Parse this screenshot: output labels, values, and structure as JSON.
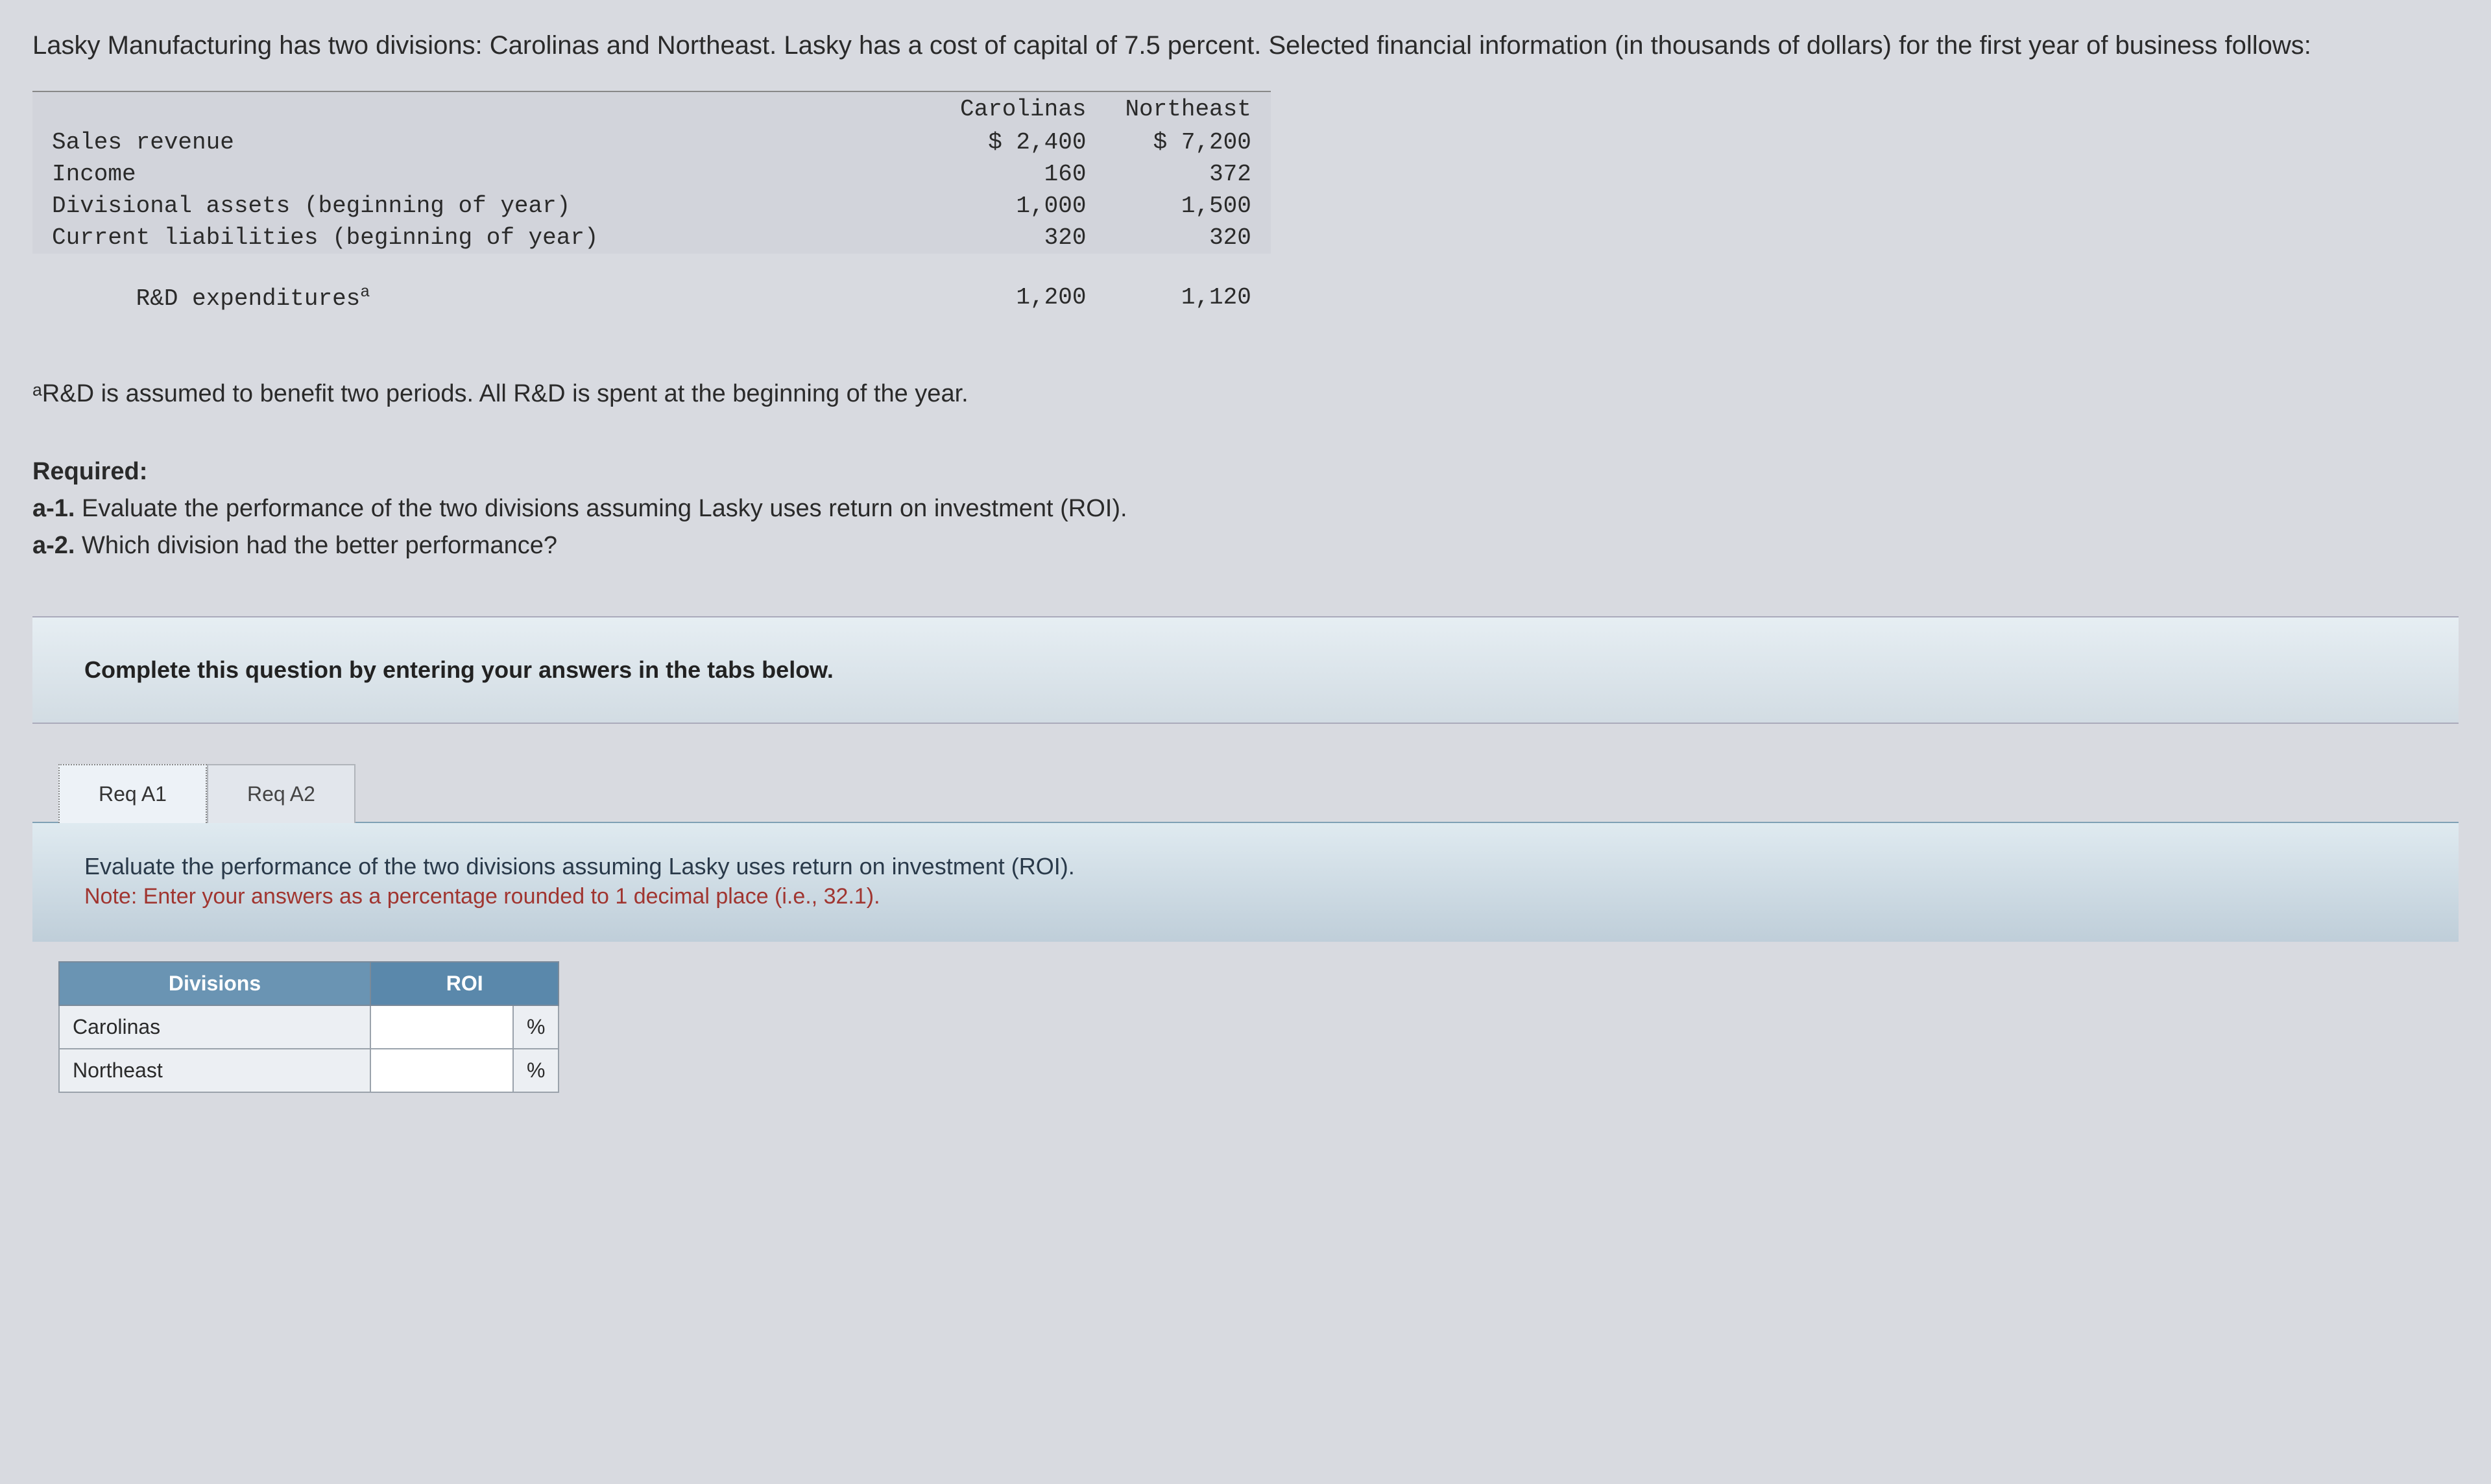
{
  "intro": "Lasky Manufacturing has two divisions: Carolinas and Northeast. Lasky has a cost of capital of 7.5 percent. Selected financial information (in thousands of dollars) for the first year of business follows:",
  "data_table": {
    "columns": [
      "",
      "Carolinas",
      "Northeast"
    ],
    "rows": [
      {
        "label": "Sales revenue",
        "carolinas": "$ 2,400",
        "northeast": "$ 7,200"
      },
      {
        "label": "Income",
        "carolinas": "160",
        "northeast": "372"
      },
      {
        "label": "Divisional assets (beginning of year)",
        "carolinas": "1,000",
        "northeast": "1,500"
      },
      {
        "label": "Current liabilities (beginning of year)",
        "carolinas": "320",
        "northeast": "320"
      },
      {
        "label_html": "R&D expenditures",
        "label_sup": "a",
        "carolinas": "1,200",
        "northeast": "1,120"
      }
    ],
    "header_bg": "#d2d4db",
    "alt_rows": [
      0,
      1,
      2,
      3
    ]
  },
  "footnote": {
    "sup": "a",
    "text": "R&D is assumed to benefit two periods. All R&D is spent at the beginning of the year."
  },
  "required": {
    "heading": "Required:",
    "a1_label": "a-1.",
    "a1_text": " Evaluate the performance of the two divisions assuming Lasky uses return on investment (ROI).",
    "a2_label": "a-2.",
    "a2_text": " Which division had the better performance?"
  },
  "panel_text": "Complete this question by entering your answers in the tabs below.",
  "tabs": {
    "t1": "Req A1",
    "t2": "Req A2"
  },
  "tab_panel": {
    "prompt": "Evaluate the performance of the two divisions assuming Lasky uses return on investment (ROI).",
    "note": "Note: Enter your answers as a percentage rounded to 1 decimal place (i.e., 32.1)."
  },
  "answer_table": {
    "hdr_divisions": "Divisions",
    "hdr_roi": "ROI",
    "rows": [
      {
        "name": "Carolinas",
        "pct": "%"
      },
      {
        "name": "Northeast",
        "pct": "%"
      }
    ]
  }
}
